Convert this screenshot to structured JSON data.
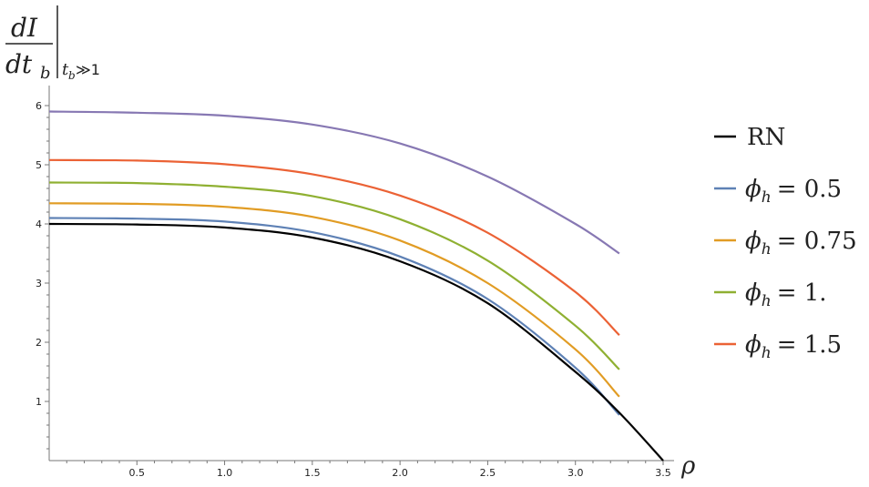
{
  "chart_data": {
    "type": "line",
    "ylabel": {
      "numerator": "dI",
      "denominator": "dt",
      "denominator_sub": "b",
      "eval_main": "t",
      "eval_sub": "b",
      "eval_rel": "≫1"
    },
    "xlabel": "ρ",
    "xlim": [
      0,
      3.55
    ],
    "ylim": [
      0,
      6.2
    ],
    "x_ticks": [
      0.5,
      1.0,
      1.5,
      2.0,
      2.5,
      3.0,
      3.5
    ],
    "x_tick_labels": [
      "0.5",
      "1.0",
      "1.5",
      "2.0",
      "2.5",
      "3.0",
      "3.5"
    ],
    "y_ticks": [
      1,
      2,
      3,
      4,
      5,
      6
    ],
    "y_tick_labels": [
      "1",
      "2",
      "3",
      "4",
      "5",
      "6"
    ],
    "grid": false,
    "legend_position": "right",
    "series": [
      {
        "name": "RN",
        "color": "#000000",
        "x": [
          0,
          0.5,
          1.0,
          1.5,
          2.0,
          2.5,
          3.0,
          3.25,
          3.5
        ],
        "y": [
          4.0,
          3.99,
          3.94,
          3.77,
          3.37,
          2.66,
          1.5,
          0.81,
          0.0
        ]
      },
      {
        "name": "φ_h = 0.5",
        "legend_base": "ϕ",
        "legend_sub": "h",
        "legend_value": "= 0.5",
        "color": "#5e81b5",
        "x": [
          0,
          0.5,
          1.0,
          1.5,
          2.0,
          2.5,
          3.0,
          3.25
        ],
        "y": [
          4.1,
          4.09,
          4.04,
          3.86,
          3.45,
          2.73,
          1.57,
          0.77
        ]
      },
      {
        "name": "φ_h = 0.75",
        "legend_base": "ϕ",
        "legend_sub": "h",
        "legend_value": "= 0.75",
        "color": "#e19c24",
        "x": [
          0,
          0.5,
          1.0,
          1.5,
          2.0,
          2.5,
          3.0,
          3.25
        ],
        "y": [
          4.35,
          4.34,
          4.29,
          4.12,
          3.72,
          3.0,
          1.88,
          1.08
        ]
      },
      {
        "name": "φ_h = 1.",
        "legend_base": "ϕ",
        "legend_sub": "h",
        "legend_value": "= 1.",
        "color": "#8fb032",
        "x": [
          0,
          0.5,
          1.0,
          1.5,
          2.0,
          2.5,
          3.0,
          3.25
        ],
        "y": [
          4.7,
          4.69,
          4.63,
          4.47,
          4.08,
          3.38,
          2.28,
          1.54
        ]
      },
      {
        "name": "φ_h = 1.5",
        "legend_base": "ϕ",
        "legend_sub": "h",
        "legend_value": "= 1.5",
        "color": "#eb6235",
        "x": [
          0,
          0.5,
          1.0,
          1.5,
          2.0,
          2.5,
          3.0,
          3.25
        ],
        "y": [
          5.08,
          5.07,
          5.01,
          4.84,
          4.48,
          3.85,
          2.85,
          2.12
        ]
      },
      {
        "name": "",
        "color": "#8778b3",
        "x": [
          0,
          0.5,
          1.0,
          1.5,
          2.0,
          2.5,
          3.0,
          3.25
        ],
        "y": [
          5.9,
          5.88,
          5.83,
          5.68,
          5.36,
          4.8,
          4.0,
          3.5
        ]
      }
    ]
  }
}
